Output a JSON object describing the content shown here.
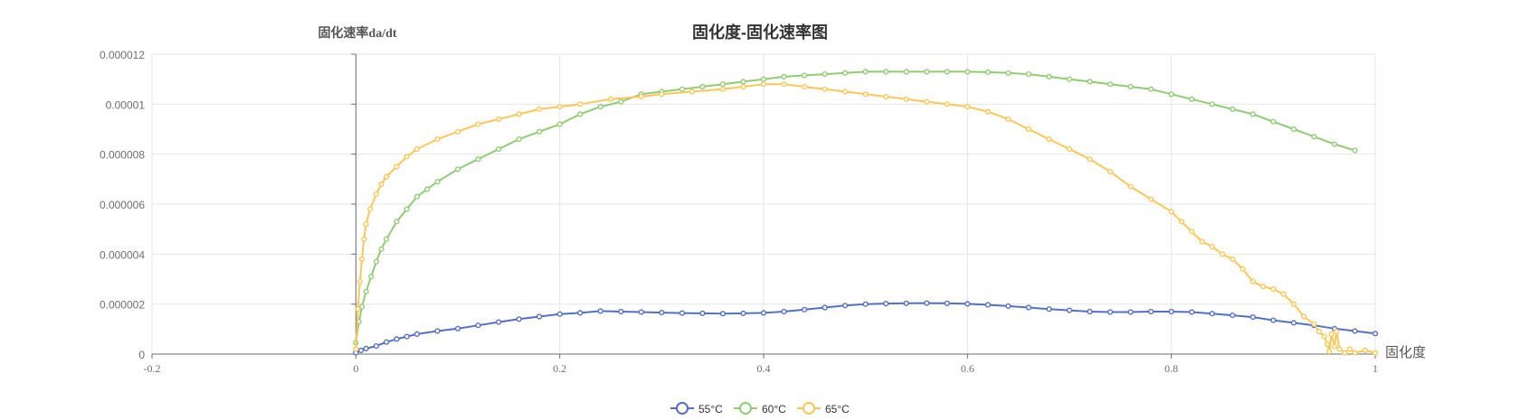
{
  "chart_data": {
    "type": "line",
    "title": "固化度-固化速率图",
    "xlabel": "固化度",
    "ylabel": "固化速率da/dt",
    "xlim": [
      -0.2,
      1
    ],
    "ylim": [
      0,
      1.2e-05
    ],
    "xticks": [
      -0.2,
      0,
      0.2,
      0.4,
      0.6,
      0.8,
      1
    ],
    "yticks": [
      0,
      2e-06,
      4e-06,
      6e-06,
      8e-06,
      1e-05,
      1.2e-05
    ],
    "xtick_labels": [
      "-0.2",
      "0",
      "0.2",
      "0.4",
      "0.6",
      "0.8",
      "1"
    ],
    "ytick_labels": [
      "0",
      "0.000002",
      "0.000004",
      "0.000006",
      "0.000008",
      "0.00001",
      "0.000012"
    ],
    "grid": true,
    "legend_position": "bottom-center",
    "series": [
      {
        "name": "55°C",
        "color": "#5470c6",
        "points": [
          [
            0,
            5e-08
          ],
          [
            0.005,
            1.5e-07
          ],
          [
            0.01,
            2.2e-07
          ],
          [
            0.02,
            3.2e-07
          ],
          [
            0.03,
            4.8e-07
          ],
          [
            0.04,
            6e-07
          ],
          [
            0.05,
            7e-07
          ],
          [
            0.06,
            8e-07
          ],
          [
            0.08,
            9.2e-07
          ],
          [
            0.1,
            1.02e-06
          ],
          [
            0.12,
            1.15e-06
          ],
          [
            0.14,
            1.28e-06
          ],
          [
            0.16,
            1.4e-06
          ],
          [
            0.18,
            1.5e-06
          ],
          [
            0.2,
            1.6e-06
          ],
          [
            0.22,
            1.65e-06
          ],
          [
            0.24,
            1.72e-06
          ],
          [
            0.26,
            1.7e-06
          ],
          [
            0.28,
            1.68e-06
          ],
          [
            0.3,
            1.66e-06
          ],
          [
            0.32,
            1.64e-06
          ],
          [
            0.34,
            1.63e-06
          ],
          [
            0.36,
            1.62e-06
          ],
          [
            0.38,
            1.63e-06
          ],
          [
            0.4,
            1.65e-06
          ],
          [
            0.42,
            1.7e-06
          ],
          [
            0.44,
            1.78e-06
          ],
          [
            0.46,
            1.86e-06
          ],
          [
            0.48,
            1.94e-06
          ],
          [
            0.5,
            2e-06
          ],
          [
            0.52,
            2.02e-06
          ],
          [
            0.54,
            2.03e-06
          ],
          [
            0.56,
            2.04e-06
          ],
          [
            0.58,
            2.03e-06
          ],
          [
            0.6,
            2.01e-06
          ],
          [
            0.62,
            1.97e-06
          ],
          [
            0.64,
            1.92e-06
          ],
          [
            0.66,
            1.86e-06
          ],
          [
            0.68,
            1.8e-06
          ],
          [
            0.7,
            1.75e-06
          ],
          [
            0.72,
            1.7e-06
          ],
          [
            0.74,
            1.68e-06
          ],
          [
            0.76,
            1.68e-06
          ],
          [
            0.78,
            1.7e-06
          ],
          [
            0.8,
            1.7e-06
          ],
          [
            0.82,
            1.68e-06
          ],
          [
            0.84,
            1.62e-06
          ],
          [
            0.86,
            1.55e-06
          ],
          [
            0.88,
            1.48e-06
          ],
          [
            0.9,
            1.35e-06
          ],
          [
            0.92,
            1.25e-06
          ],
          [
            0.94,
            1.15e-06
          ],
          [
            0.96,
            1.02e-06
          ],
          [
            0.98,
            9.2e-07
          ],
          [
            1,
            8.2e-07
          ]
        ]
      },
      {
        "name": "60°C",
        "color": "#91cc75",
        "points": [
          [
            0,
            4.5e-07
          ],
          [
            0.003,
            1.3e-06
          ],
          [
            0.006,
            1.9e-06
          ],
          [
            0.01,
            2.5e-06
          ],
          [
            0.015,
            3.1e-06
          ],
          [
            0.02,
            3.7e-06
          ],
          [
            0.025,
            4.2e-06
          ],
          [
            0.03,
            4.6e-06
          ],
          [
            0.04,
            5.3e-06
          ],
          [
            0.05,
            5.8e-06
          ],
          [
            0.06,
            6.3e-06
          ],
          [
            0.07,
            6.6e-06
          ],
          [
            0.08,
            6.9e-06
          ],
          [
            0.1,
            7.4e-06
          ],
          [
            0.12,
            7.8e-06
          ],
          [
            0.14,
            8.2e-06
          ],
          [
            0.16,
            8.6e-06
          ],
          [
            0.18,
            8.9e-06
          ],
          [
            0.2,
            9.2e-06
          ],
          [
            0.22,
            9.6e-06
          ],
          [
            0.24,
            9.9e-06
          ],
          [
            0.26,
            1.01e-05
          ],
          [
            0.28,
            1.04e-05
          ],
          [
            0.3,
            1.05e-05
          ],
          [
            0.32,
            1.06e-05
          ],
          [
            0.34,
            1.07e-05
          ],
          [
            0.36,
            1.08e-05
          ],
          [
            0.38,
            1.09e-05
          ],
          [
            0.4,
            1.1e-05
          ],
          [
            0.42,
            1.11e-05
          ],
          [
            0.44,
            1.115e-05
          ],
          [
            0.46,
            1.12e-05
          ],
          [
            0.48,
            1.125e-05
          ],
          [
            0.5,
            1.13e-05
          ],
          [
            0.52,
            1.13e-05
          ],
          [
            0.54,
            1.13e-05
          ],
          [
            0.56,
            1.13e-05
          ],
          [
            0.58,
            1.13e-05
          ],
          [
            0.6,
            1.13e-05
          ],
          [
            0.62,
            1.128e-05
          ],
          [
            0.64,
            1.125e-05
          ],
          [
            0.66,
            1.12e-05
          ],
          [
            0.68,
            1.11e-05
          ],
          [
            0.7,
            1.1e-05
          ],
          [
            0.72,
            1.09e-05
          ],
          [
            0.74,
            1.08e-05
          ],
          [
            0.76,
            1.07e-05
          ],
          [
            0.78,
            1.06e-05
          ],
          [
            0.8,
            1.04e-05
          ],
          [
            0.82,
            1.02e-05
          ],
          [
            0.84,
            1e-05
          ],
          [
            0.86,
            9.8e-06
          ],
          [
            0.88,
            9.6e-06
          ],
          [
            0.9,
            9.3e-06
          ],
          [
            0.92,
            9e-06
          ],
          [
            0.94,
            8.7e-06
          ],
          [
            0.96,
            8.4e-06
          ],
          [
            0.98,
            8.15e-06
          ]
        ]
      },
      {
        "name": "65°C",
        "color": "#fac858",
        "points": [
          [
            0,
            2e-07
          ],
          [
            0.002,
            1.8e-06
          ],
          [
            0.004,
            2.9e-06
          ],
          [
            0.006,
            3.8e-06
          ],
          [
            0.008,
            4.6e-06
          ],
          [
            0.01,
            5.2e-06
          ],
          [
            0.014,
            5.8e-06
          ],
          [
            0.02,
            6.4e-06
          ],
          [
            0.025,
            6.8e-06
          ],
          [
            0.03,
            7.1e-06
          ],
          [
            0.04,
            7.5e-06
          ],
          [
            0.05,
            7.9e-06
          ],
          [
            0.06,
            8.2e-06
          ],
          [
            0.08,
            8.6e-06
          ],
          [
            0.1,
            8.9e-06
          ],
          [
            0.12,
            9.2e-06
          ],
          [
            0.14,
            9.4e-06
          ],
          [
            0.16,
            9.6e-06
          ],
          [
            0.18,
            9.8e-06
          ],
          [
            0.2,
            9.9e-06
          ],
          [
            0.22,
            1e-05
          ],
          [
            0.25,
            1.02e-05
          ],
          [
            0.28,
            1.03e-05
          ],
          [
            0.3,
            1.04e-05
          ],
          [
            0.33,
            1.05e-05
          ],
          [
            0.36,
            1.06e-05
          ],
          [
            0.38,
            1.07e-05
          ],
          [
            0.4,
            1.08e-05
          ],
          [
            0.42,
            1.08e-05
          ],
          [
            0.44,
            1.07e-05
          ],
          [
            0.46,
            1.06e-05
          ],
          [
            0.48,
            1.05e-05
          ],
          [
            0.5,
            1.04e-05
          ],
          [
            0.52,
            1.03e-05
          ],
          [
            0.54,
            1.02e-05
          ],
          [
            0.56,
            1.01e-05
          ],
          [
            0.58,
            1e-05
          ],
          [
            0.6,
            9.9e-06
          ],
          [
            0.62,
            9.7e-06
          ],
          [
            0.64,
            9.4e-06
          ],
          [
            0.66,
            9e-06
          ],
          [
            0.68,
            8.6e-06
          ],
          [
            0.7,
            8.2e-06
          ],
          [
            0.72,
            7.8e-06
          ],
          [
            0.74,
            7.3e-06
          ],
          [
            0.76,
            6.7e-06
          ],
          [
            0.78,
            6.2e-06
          ],
          [
            0.8,
            5.7e-06
          ],
          [
            0.81,
            5.3e-06
          ],
          [
            0.82,
            4.9e-06
          ],
          [
            0.83,
            4.5e-06
          ],
          [
            0.84,
            4.3e-06
          ],
          [
            0.85,
            4e-06
          ],
          [
            0.86,
            3.8e-06
          ],
          [
            0.87,
            3.4e-06
          ],
          [
            0.88,
            2.9e-06
          ],
          [
            0.89,
            2.7e-06
          ],
          [
            0.9,
            2.6e-06
          ],
          [
            0.91,
            2.4e-06
          ],
          [
            0.92,
            2e-06
          ],
          [
            0.93,
            1.5e-06
          ],
          [
            0.94,
            1.2e-06
          ],
          [
            0.945,
            9e-07
          ],
          [
            0.95,
            7e-07
          ],
          [
            0.953,
            4e-07
          ],
          [
            0.955,
            1e-07
          ],
          [
            0.957,
            8e-07
          ],
          [
            0.96,
            3e-07
          ],
          [
            0.962,
            9e-07
          ],
          [
            0.965,
            2e-07
          ],
          [
            0.97,
            5e-08
          ],
          [
            0.975,
            2e-07
          ],
          [
            0.98,
            5e-08
          ],
          [
            0.99,
            1.5e-07
          ],
          [
            1,
            5e-08
          ]
        ]
      }
    ]
  }
}
